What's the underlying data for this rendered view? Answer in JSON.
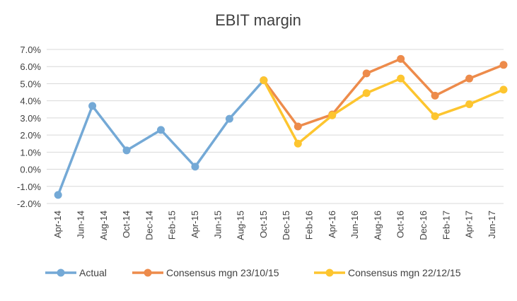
{
  "chart_data": {
    "type": "line",
    "title": "EBIT margin",
    "xlabel": "",
    "ylabel": "",
    "categories": [
      "Apr-14",
      "Jun-14",
      "Aug-14",
      "Oct-14",
      "Dec-14",
      "Feb-15",
      "Apr-15",
      "Jun-15",
      "Aug-15",
      "Oct-15",
      "Dec-15",
      "Feb-16",
      "Apr-16",
      "Jun-16",
      "Aug-16",
      "Oct-16",
      "Dec-16",
      "Feb-17",
      "Apr-17",
      "Jun-17"
    ],
    "y_ticks": [
      "7.0%",
      "6.0%",
      "5.0%",
      "4.0%",
      "3.0%",
      "2.0%",
      "1.0%",
      "0.0%",
      "-1.0%",
      "-2.0%"
    ],
    "ylim": [
      -2.0,
      7.0
    ],
    "y_unit": "%",
    "grid": true,
    "legend_position": "bottom",
    "series": [
      {
        "name": "Actual",
        "color": "#74a9d6",
        "points": [
          {
            "x": "Apr-14",
            "y": -1.5
          },
          {
            "x": "Jul-14",
            "y": 3.7
          },
          {
            "x": "Oct-14",
            "y": 1.1
          },
          {
            "x": "Jan-15",
            "y": 2.3
          },
          {
            "x": "Apr-15",
            "y": 0.15
          },
          {
            "x": "Jul-15",
            "y": 2.95
          },
          {
            "x": "Oct-15",
            "y": 5.2
          }
        ]
      },
      {
        "name": "Consensus mgn 23/10/15",
        "color": "#ed8b4b",
        "points": [
          {
            "x": "Oct-15",
            "y": 5.2
          },
          {
            "x": "Jan-16",
            "y": 2.5
          },
          {
            "x": "Apr-16",
            "y": 3.2
          },
          {
            "x": "Jul-16",
            "y": 5.6
          },
          {
            "x": "Oct-16",
            "y": 6.45
          },
          {
            "x": "Jan-17",
            "y": 4.3
          },
          {
            "x": "Apr-17",
            "y": 5.3
          },
          {
            "x": "Jul-17",
            "y": 6.1
          }
        ]
      },
      {
        "name": "Consensus mgn 22/12/15",
        "color": "#fdc52f",
        "points": [
          {
            "x": "Oct-15",
            "y": 5.2
          },
          {
            "x": "Jan-16",
            "y": 1.5
          },
          {
            "x": "Apr-16",
            "y": 3.15
          },
          {
            "x": "Jul-16",
            "y": 4.45
          },
          {
            "x": "Oct-16",
            "y": 5.3
          },
          {
            "x": "Jan-17",
            "y": 3.1
          },
          {
            "x": "Apr-17",
            "y": 3.8
          },
          {
            "x": "Jul-17",
            "y": 4.65
          }
        ]
      }
    ]
  }
}
